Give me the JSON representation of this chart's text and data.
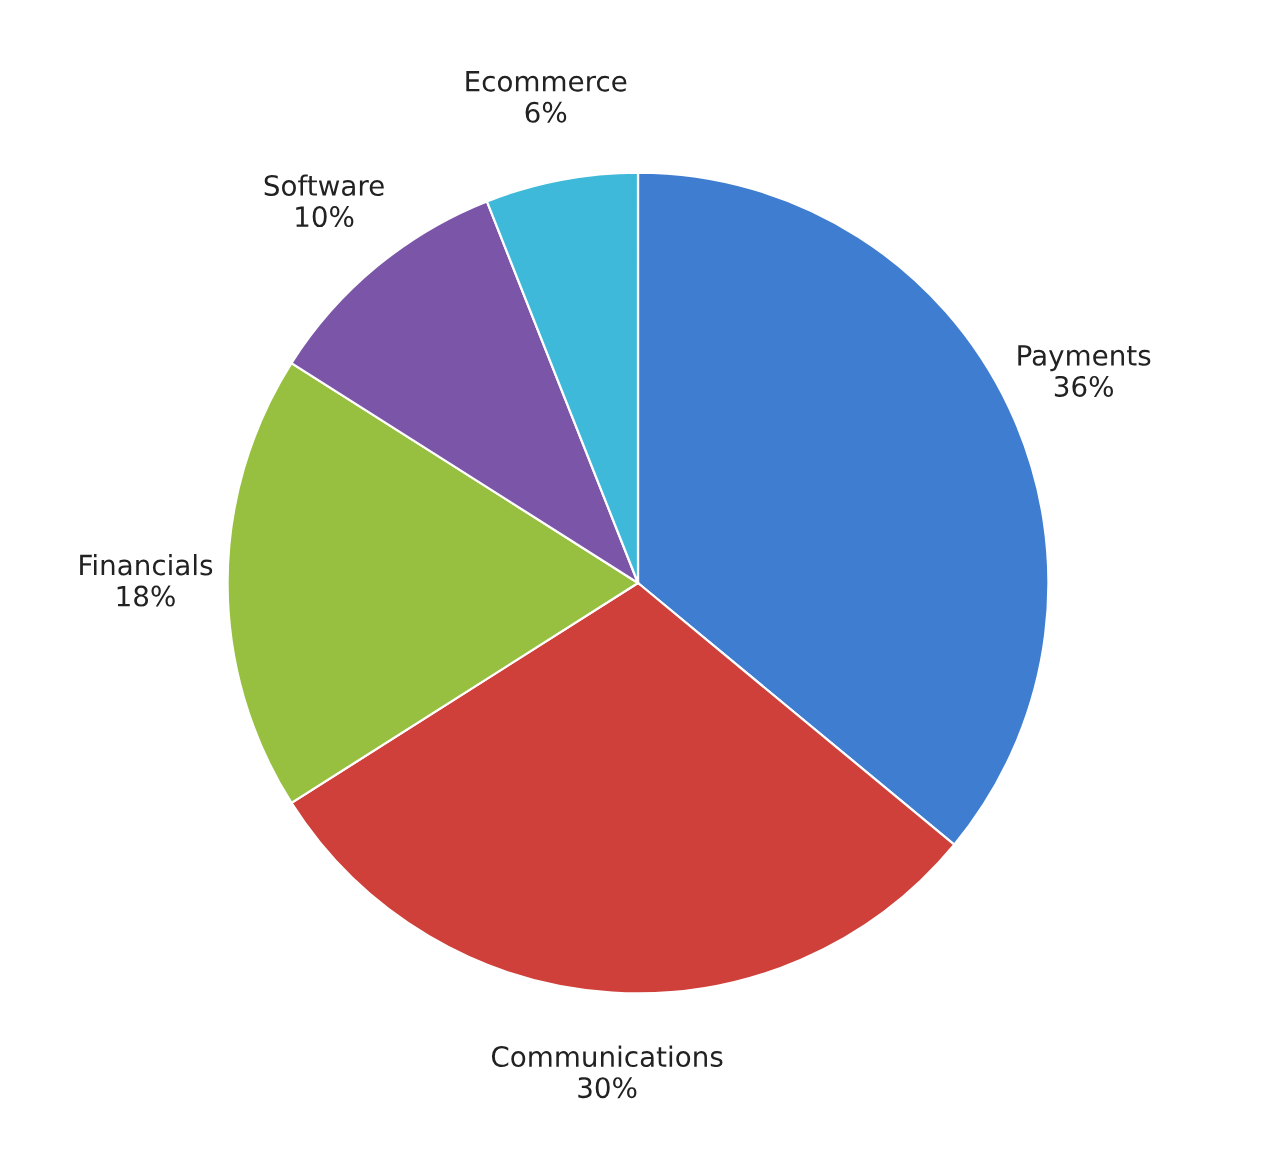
{
  "chart_data": {
    "type": "pie",
    "categories": [
      "Payments",
      "Communications",
      "Financials",
      "Software",
      "Ecommerce"
    ],
    "values": [
      36,
      30,
      18,
      10,
      6
    ],
    "value_labels": [
      "36%",
      "30%",
      "18%",
      "10%",
      "6%"
    ],
    "colors": [
      "#3f7dd0",
      "#d0403a",
      "#98c040",
      "#7b56a8",
      "#3fb9d9"
    ],
    "legend": false
  }
}
